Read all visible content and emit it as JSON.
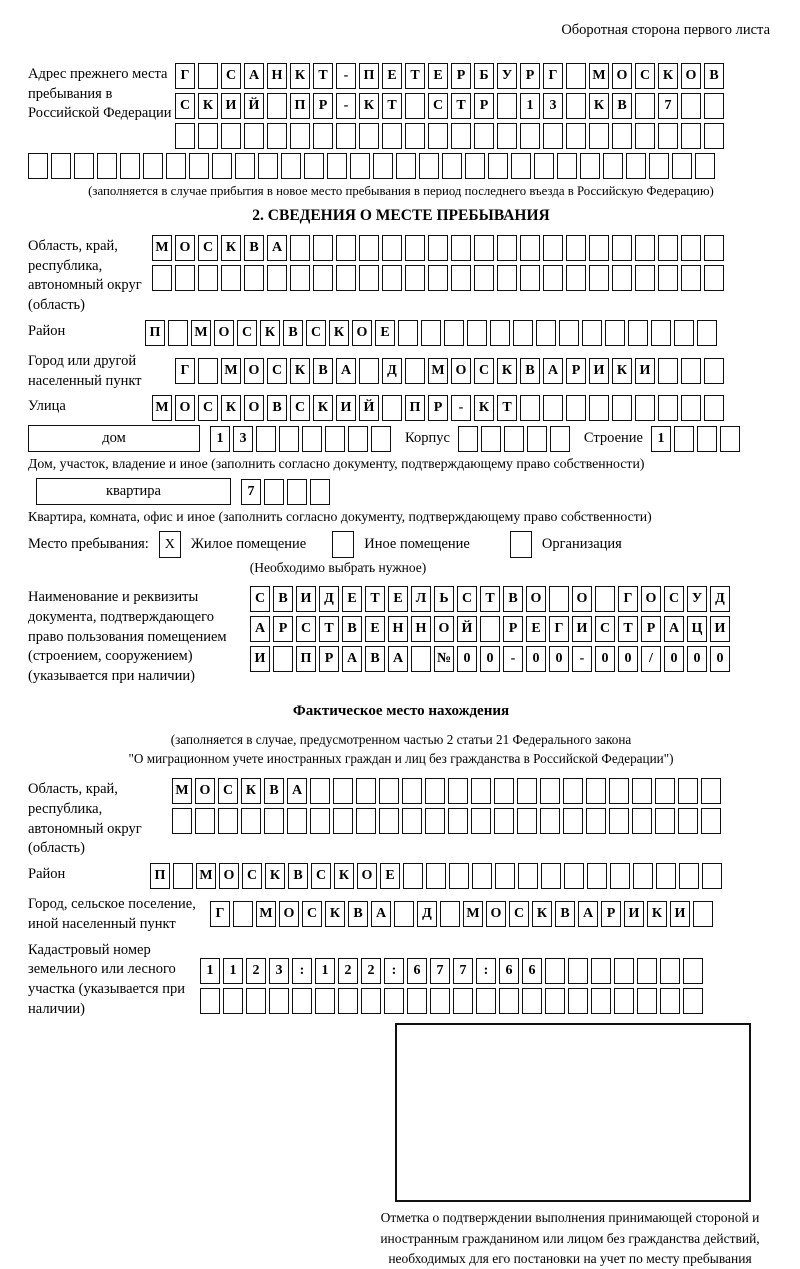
{
  "header_note": "Оборотная сторона первого листа",
  "prev_address": {
    "label": "Адрес прежнего места пребывания в Российской Федерации",
    "rows": [
      [
        "Г",
        "",
        "С",
        "А",
        "Н",
        "К",
        "Т",
        "-",
        "П",
        "Е",
        "Т",
        "Е",
        "Р",
        "Б",
        "У",
        "Р",
        "Г",
        "",
        "М",
        "О",
        "С",
        "К",
        "О",
        "В"
      ],
      [
        "С",
        "К",
        "И",
        "Й",
        "",
        "П",
        "Р",
        "-",
        "К",
        "Т",
        "",
        "С",
        "Т",
        "Р",
        "",
        "1",
        "3",
        "",
        "К",
        "В",
        "",
        "7",
        "",
        ""
      ],
      [
        "",
        "",
        "",
        "",
        "",
        "",
        "",
        "",
        "",
        "",
        "",
        "",
        "",
        "",
        "",
        "",
        "",
        "",
        "",
        "",
        "",
        "",
        "",
        ""
      ]
    ],
    "full_row": [
      "",
      "",
      "",
      "",
      "",
      "",
      "",
      "",
      "",
      "",
      "",
      "",
      "",
      "",
      "",
      "",
      "",
      "",
      "",
      "",
      "",
      "",
      "",
      "",
      "",
      "",
      "",
      "",
      "",
      ""
    ],
    "note": "(заполняется в случае прибытия в новое место пребывания в период последнего въезда в Российскую Федерацию)"
  },
  "section2": {
    "title": "2. СВЕДЕНИЯ О МЕСТЕ ПРЕБЫВАНИЯ",
    "oblast": {
      "label": "Область, край, республика, автономный округ (область)",
      "rows": [
        [
          "М",
          "О",
          "С",
          "К",
          "В",
          "А",
          "",
          "",
          "",
          "",
          "",
          "",
          "",
          "",
          "",
          "",
          "",
          "",
          "",
          "",
          "",
          "",
          "",
          "",
          ""
        ],
        [
          "",
          "",
          "",
          "",
          "",
          "",
          "",
          "",
          "",
          "",
          "",
          "",
          "",
          "",
          "",
          "",
          "",
          "",
          "",
          "",
          "",
          "",
          "",
          "",
          ""
        ]
      ]
    },
    "raion": {
      "label": "Район",
      "row": [
        "П",
        "",
        "М",
        "О",
        "С",
        "К",
        "В",
        "С",
        "К",
        "О",
        "Е",
        "",
        "",
        "",
        "",
        "",
        "",
        "",
        "",
        "",
        "",
        "",
        "",
        "",
        ""
      ]
    },
    "gorod": {
      "label": "Город или другой населенный пункт",
      "row": [
        "Г",
        "",
        "М",
        "О",
        "С",
        "К",
        "В",
        "А",
        "",
        "Д",
        "",
        "М",
        "О",
        "С",
        "К",
        "В",
        "А",
        "Р",
        "И",
        "К",
        "И",
        "",
        "",
        ""
      ]
    },
    "ulitsa": {
      "label": "Улица",
      "row": [
        "М",
        "О",
        "С",
        "К",
        "О",
        "В",
        "С",
        "К",
        "И",
        "Й",
        "",
        "П",
        "Р",
        "-",
        "К",
        "Т",
        "",
        "",
        "",
        "",
        "",
        "",
        "",
        "",
        ""
      ]
    },
    "dom": {
      "label": "дом",
      "values": [
        "1",
        "3",
        "",
        "",
        "",
        "",
        "",
        ""
      ],
      "korpus_label": "Корпус",
      "korpus": [
        "",
        "",
        "",
        "",
        ""
      ],
      "stroenie_label": "Строение",
      "stroenie": [
        "1",
        "",
        "",
        ""
      ]
    },
    "dom_note": "Дом, участок, владение и иное (заполнить согласно документу, подтверждающему право собственности)",
    "kvartira": {
      "label": "квартира",
      "values": [
        "7",
        "",
        "",
        ""
      ]
    },
    "kvartira_note": "Квартира, комната, офис и иное (заполнить согласно документу, подтверждающему право собственности)",
    "mesto": {
      "label": "Место пребывания:",
      "options": [
        {
          "label": "Жилое помещение",
          "mark": "X"
        },
        {
          "label": "Иное помещение",
          "mark": ""
        },
        {
          "label": "Организация",
          "mark": ""
        }
      ],
      "note": "(Необходимо выбрать нужное)"
    },
    "doc": {
      "label": "Наименование и реквизиты документа, подтверждающего право пользования помещением (строением, сооружением) (указывается при наличии)",
      "rows": [
        [
          "С",
          "В",
          "И",
          "Д",
          "Е",
          "Т",
          "Е",
          "Л",
          "Ь",
          "С",
          "Т",
          "В",
          "О",
          "",
          "О",
          "",
          "Г",
          "О",
          "С",
          "У",
          "Д"
        ],
        [
          "А",
          "Р",
          "С",
          "Т",
          "В",
          "Е",
          "Н",
          "Н",
          "О",
          "Й",
          "",
          "Р",
          "Е",
          "Г",
          "И",
          "С",
          "Т",
          "Р",
          "А",
          "Ц",
          "И"
        ],
        [
          "И",
          "",
          "П",
          "Р",
          "А",
          "В",
          "А",
          "",
          "№",
          "0",
          "0",
          "-",
          "0",
          "0",
          "-",
          "0",
          "0",
          "/",
          "0",
          "0",
          "0"
        ]
      ]
    }
  },
  "fact": {
    "title": "Фактическое место нахождения",
    "note1": "(заполняется в случае, предусмотренном частью 2 статьи 21 Федерального закона",
    "note2": "\"О миграционном учете иностранных граждан и лиц без гражданства в Российской Федерации\")",
    "oblast": {
      "label": "Область, край, республика, автономный округ (область)",
      "rows": [
        [
          "М",
          "О",
          "С",
          "К",
          "В",
          "А",
          "",
          "",
          "",
          "",
          "",
          "",
          "",
          "",
          "",
          "",
          "",
          "",
          "",
          "",
          "",
          "",
          "",
          ""
        ],
        [
          "",
          "",
          "",
          "",
          "",
          "",
          "",
          "",
          "",
          "",
          "",
          "",
          "",
          "",
          "",
          "",
          "",
          "",
          "",
          "",
          "",
          "",
          "",
          ""
        ]
      ]
    },
    "raion": {
      "label": "Район",
      "row": [
        "П",
        "",
        "М",
        "О",
        "С",
        "К",
        "В",
        "С",
        "К",
        "О",
        "Е",
        "",
        "",
        "",
        "",
        "",
        "",
        "",
        "",
        "",
        "",
        "",
        "",
        "",
        ""
      ]
    },
    "gorod": {
      "label": "Город, сельское поселение, иной населенный пункт",
      "row": [
        "Г",
        "",
        "М",
        "О",
        "С",
        "К",
        "В",
        "А",
        "",
        "Д",
        "",
        "М",
        "О",
        "С",
        "К",
        "В",
        "А",
        "Р",
        "И",
        "К",
        "И",
        ""
      ]
    },
    "kadastr": {
      "label": "Кадастровый номер земельного или лесного участка (указывается при наличии)",
      "rows": [
        [
          "1",
          "1",
          "2",
          "3",
          ":",
          "1",
          "2",
          "2",
          ":",
          "6",
          "7",
          "7",
          ":",
          "6",
          "6",
          "",
          "",
          "",
          "",
          "",
          "",
          ""
        ],
        [
          "",
          "",
          "",
          "",
          "",
          "",
          "",
          "",
          "",
          "",
          "",
          "",
          "",
          "",
          "",
          "",
          "",
          "",
          "",
          "",
          "",
          ""
        ]
      ]
    }
  },
  "stamp": {
    "note": "Отметка о подтверждении выполнения принимающей стороной и иностранным гражданином или лицом без гражданства действий, необходимых для его постановки на учет по месту пребывания"
  }
}
